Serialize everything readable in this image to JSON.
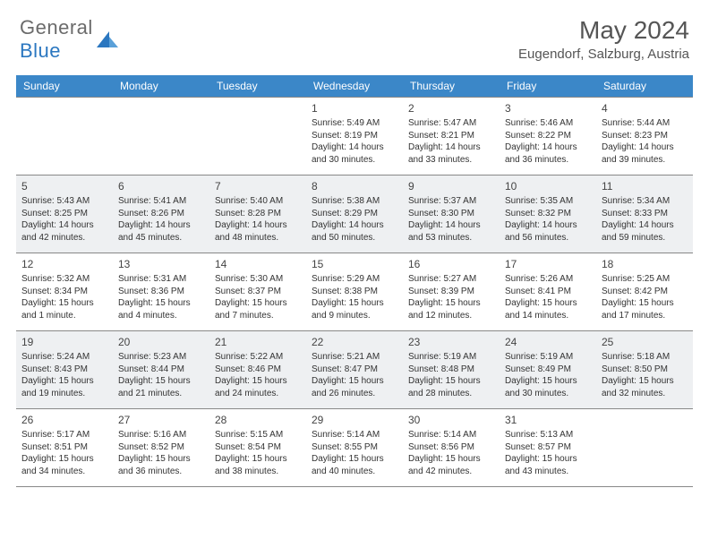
{
  "logo": {
    "text1": "General",
    "text2": "Blue"
  },
  "header": {
    "month_title": "May 2024",
    "location": "Eugendorf, Salzburg, Austria"
  },
  "colors": {
    "header_bg": "#3b87c8",
    "header_text": "#ffffff",
    "alt_row_bg": "#eef0f2",
    "border": "#888888",
    "logo_blue": "#2b77c0",
    "logo_gray": "#6b6b6b"
  },
  "day_names": [
    "Sunday",
    "Monday",
    "Tuesday",
    "Wednesday",
    "Thursday",
    "Friday",
    "Saturday"
  ],
  "weeks": [
    {
      "alt": false,
      "cells": [
        null,
        null,
        null,
        {
          "n": "1",
          "sr": "Sunrise: 5:49 AM",
          "ss": "Sunset: 8:19 PM",
          "d1": "Daylight: 14 hours",
          "d2": "and 30 minutes."
        },
        {
          "n": "2",
          "sr": "Sunrise: 5:47 AM",
          "ss": "Sunset: 8:21 PM",
          "d1": "Daylight: 14 hours",
          "d2": "and 33 minutes."
        },
        {
          "n": "3",
          "sr": "Sunrise: 5:46 AM",
          "ss": "Sunset: 8:22 PM",
          "d1": "Daylight: 14 hours",
          "d2": "and 36 minutes."
        },
        {
          "n": "4",
          "sr": "Sunrise: 5:44 AM",
          "ss": "Sunset: 8:23 PM",
          "d1": "Daylight: 14 hours",
          "d2": "and 39 minutes."
        }
      ]
    },
    {
      "alt": true,
      "cells": [
        {
          "n": "5",
          "sr": "Sunrise: 5:43 AM",
          "ss": "Sunset: 8:25 PM",
          "d1": "Daylight: 14 hours",
          "d2": "and 42 minutes."
        },
        {
          "n": "6",
          "sr": "Sunrise: 5:41 AM",
          "ss": "Sunset: 8:26 PM",
          "d1": "Daylight: 14 hours",
          "d2": "and 45 minutes."
        },
        {
          "n": "7",
          "sr": "Sunrise: 5:40 AM",
          "ss": "Sunset: 8:28 PM",
          "d1": "Daylight: 14 hours",
          "d2": "and 48 minutes."
        },
        {
          "n": "8",
          "sr": "Sunrise: 5:38 AM",
          "ss": "Sunset: 8:29 PM",
          "d1": "Daylight: 14 hours",
          "d2": "and 50 minutes."
        },
        {
          "n": "9",
          "sr": "Sunrise: 5:37 AM",
          "ss": "Sunset: 8:30 PM",
          "d1": "Daylight: 14 hours",
          "d2": "and 53 minutes."
        },
        {
          "n": "10",
          "sr": "Sunrise: 5:35 AM",
          "ss": "Sunset: 8:32 PM",
          "d1": "Daylight: 14 hours",
          "d2": "and 56 minutes."
        },
        {
          "n": "11",
          "sr": "Sunrise: 5:34 AM",
          "ss": "Sunset: 8:33 PM",
          "d1": "Daylight: 14 hours",
          "d2": "and 59 minutes."
        }
      ]
    },
    {
      "alt": false,
      "cells": [
        {
          "n": "12",
          "sr": "Sunrise: 5:32 AM",
          "ss": "Sunset: 8:34 PM",
          "d1": "Daylight: 15 hours",
          "d2": "and 1 minute."
        },
        {
          "n": "13",
          "sr": "Sunrise: 5:31 AM",
          "ss": "Sunset: 8:36 PM",
          "d1": "Daylight: 15 hours",
          "d2": "and 4 minutes."
        },
        {
          "n": "14",
          "sr": "Sunrise: 5:30 AM",
          "ss": "Sunset: 8:37 PM",
          "d1": "Daylight: 15 hours",
          "d2": "and 7 minutes."
        },
        {
          "n": "15",
          "sr": "Sunrise: 5:29 AM",
          "ss": "Sunset: 8:38 PM",
          "d1": "Daylight: 15 hours",
          "d2": "and 9 minutes."
        },
        {
          "n": "16",
          "sr": "Sunrise: 5:27 AM",
          "ss": "Sunset: 8:39 PM",
          "d1": "Daylight: 15 hours",
          "d2": "and 12 minutes."
        },
        {
          "n": "17",
          "sr": "Sunrise: 5:26 AM",
          "ss": "Sunset: 8:41 PM",
          "d1": "Daylight: 15 hours",
          "d2": "and 14 minutes."
        },
        {
          "n": "18",
          "sr": "Sunrise: 5:25 AM",
          "ss": "Sunset: 8:42 PM",
          "d1": "Daylight: 15 hours",
          "d2": "and 17 minutes."
        }
      ]
    },
    {
      "alt": true,
      "cells": [
        {
          "n": "19",
          "sr": "Sunrise: 5:24 AM",
          "ss": "Sunset: 8:43 PM",
          "d1": "Daylight: 15 hours",
          "d2": "and 19 minutes."
        },
        {
          "n": "20",
          "sr": "Sunrise: 5:23 AM",
          "ss": "Sunset: 8:44 PM",
          "d1": "Daylight: 15 hours",
          "d2": "and 21 minutes."
        },
        {
          "n": "21",
          "sr": "Sunrise: 5:22 AM",
          "ss": "Sunset: 8:46 PM",
          "d1": "Daylight: 15 hours",
          "d2": "and 24 minutes."
        },
        {
          "n": "22",
          "sr": "Sunrise: 5:21 AM",
          "ss": "Sunset: 8:47 PM",
          "d1": "Daylight: 15 hours",
          "d2": "and 26 minutes."
        },
        {
          "n": "23",
          "sr": "Sunrise: 5:19 AM",
          "ss": "Sunset: 8:48 PM",
          "d1": "Daylight: 15 hours",
          "d2": "and 28 minutes."
        },
        {
          "n": "24",
          "sr": "Sunrise: 5:19 AM",
          "ss": "Sunset: 8:49 PM",
          "d1": "Daylight: 15 hours",
          "d2": "and 30 minutes."
        },
        {
          "n": "25",
          "sr": "Sunrise: 5:18 AM",
          "ss": "Sunset: 8:50 PM",
          "d1": "Daylight: 15 hours",
          "d2": "and 32 minutes."
        }
      ]
    },
    {
      "alt": false,
      "cells": [
        {
          "n": "26",
          "sr": "Sunrise: 5:17 AM",
          "ss": "Sunset: 8:51 PM",
          "d1": "Daylight: 15 hours",
          "d2": "and 34 minutes."
        },
        {
          "n": "27",
          "sr": "Sunrise: 5:16 AM",
          "ss": "Sunset: 8:52 PM",
          "d1": "Daylight: 15 hours",
          "d2": "and 36 minutes."
        },
        {
          "n": "28",
          "sr": "Sunrise: 5:15 AM",
          "ss": "Sunset: 8:54 PM",
          "d1": "Daylight: 15 hours",
          "d2": "and 38 minutes."
        },
        {
          "n": "29",
          "sr": "Sunrise: 5:14 AM",
          "ss": "Sunset: 8:55 PM",
          "d1": "Daylight: 15 hours",
          "d2": "and 40 minutes."
        },
        {
          "n": "30",
          "sr": "Sunrise: 5:14 AM",
          "ss": "Sunset: 8:56 PM",
          "d1": "Daylight: 15 hours",
          "d2": "and 42 minutes."
        },
        {
          "n": "31",
          "sr": "Sunrise: 5:13 AM",
          "ss": "Sunset: 8:57 PM",
          "d1": "Daylight: 15 hours",
          "d2": "and 43 minutes."
        },
        null
      ]
    }
  ]
}
